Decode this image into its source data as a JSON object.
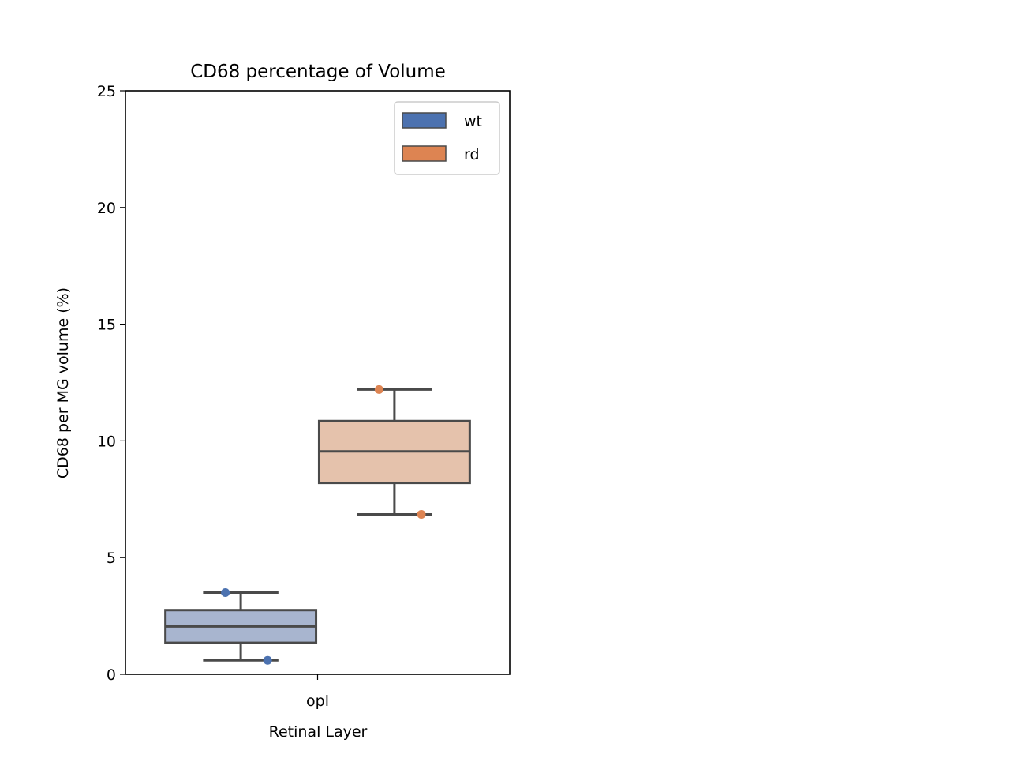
{
  "chart_data": {
    "type": "box",
    "title": "CD68 percentage of Volume",
    "xlabel": "Retinal Layer",
    "ylabel": "CD68 per MG volume (%)",
    "categories": [
      "opl"
    ],
    "ylim": [
      0,
      25
    ],
    "yticks": [
      0,
      5,
      10,
      15,
      20,
      25
    ],
    "grid": false,
    "legend": {
      "position": "top-right"
    },
    "series": [
      {
        "name": "wt",
        "color": "#4c72b0",
        "box_fill": "#a8b5cf",
        "boxes": [
          {
            "category": "opl",
            "whisker_low": 0.6,
            "q1": 1.35,
            "median": 2.05,
            "q3": 2.75,
            "whisker_high": 3.5,
            "points": [
              3.5,
              0.6
            ]
          }
        ]
      },
      {
        "name": "rd",
        "color": "#dd8452",
        "box_fill": "#e5c2ac",
        "boxes": [
          {
            "category": "opl",
            "whisker_low": 6.85,
            "q1": 8.2,
            "median": 9.55,
            "q3": 10.85,
            "whisker_high": 12.2,
            "points": [
              12.2,
              6.85
            ]
          }
        ]
      }
    ]
  }
}
